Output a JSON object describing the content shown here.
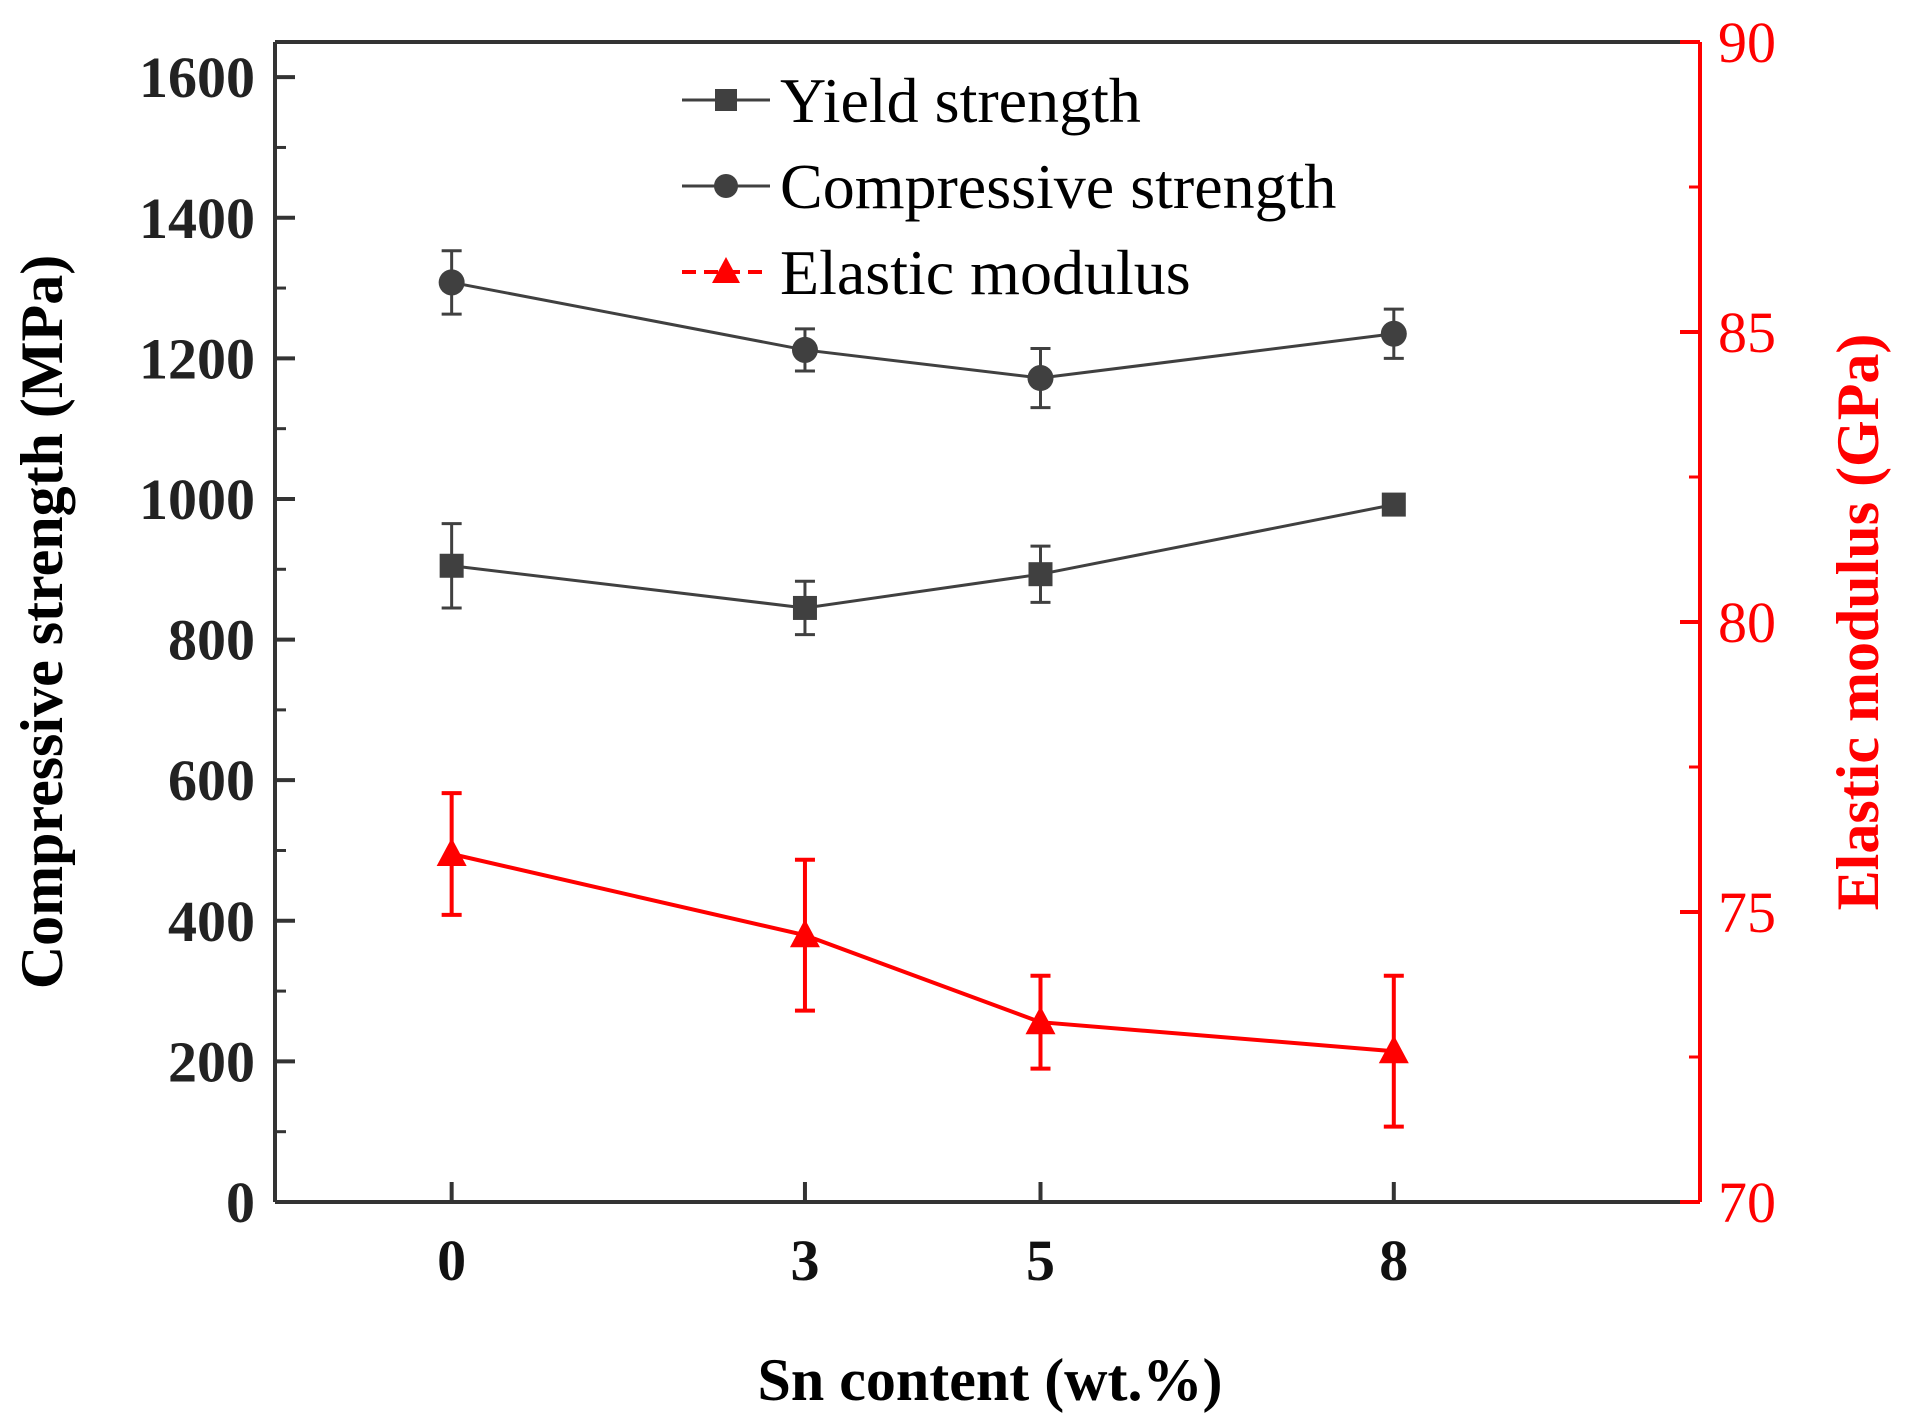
{
  "chart_data": {
    "type": "line",
    "categories": [
      "0",
      "3",
      "5",
      "8"
    ],
    "x": [
      0,
      3,
      5,
      8
    ],
    "xlabel": "Sn content (wt.%)",
    "ylabel": "Compressive strength (MPa)",
    "y2label": "Elastic modulus (GPa)",
    "ylim": [
      0,
      1650
    ],
    "y2lim": [
      70,
      90
    ],
    "yticks": [
      "0",
      "200",
      "400",
      "600",
      "800",
      "1000",
      "1200",
      "1400",
      "1600"
    ],
    "y2ticks": [
      "70",
      "75",
      "80",
      "85",
      "90"
    ],
    "colors": {
      "left_axis": "#333333",
      "right_axis": "#ff0000",
      "series_dark": "#404040",
      "series_red": "#ff0000"
    },
    "legend": "top-center",
    "series": [
      {
        "name": "Yield strength",
        "axis": "left",
        "marker": "square",
        "color": "#404040",
        "values": [
          905,
          845,
          893,
          992
        ],
        "errors": [
          60,
          38,
          40,
          12
        ]
      },
      {
        "name": "Compressive strength",
        "axis": "left",
        "marker": "circle",
        "color": "#404040",
        "values": [
          1308,
          1212,
          1172,
          1235
        ],
        "errors": [
          45,
          30,
          42,
          35
        ]
      },
      {
        "name": "Elastic modulus",
        "axis": "right",
        "marker": "triangle",
        "color": "#ff0000",
        "values": [
          76.0,
          74.6,
          73.1,
          72.6
        ],
        "errors": [
          1.05,
          1.3,
          0.8,
          1.3
        ]
      }
    ]
  }
}
